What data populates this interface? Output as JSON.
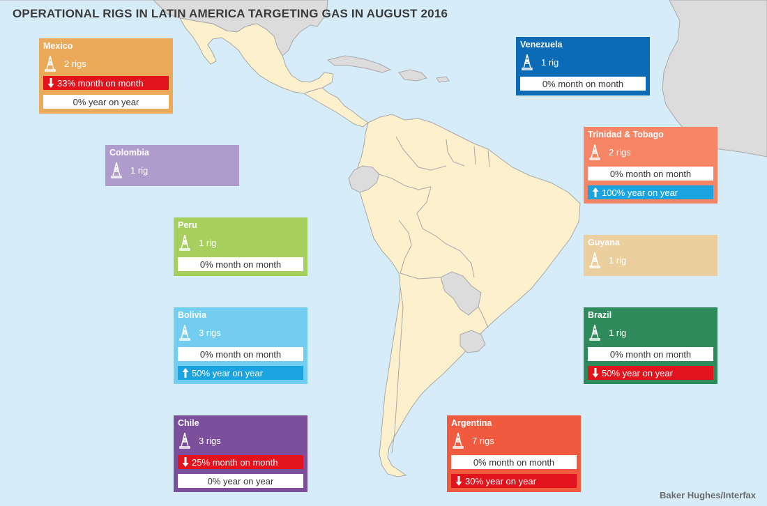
{
  "title": "OPERATIONAL RIGS IN LATIN AMERICA TARGETING GAS IN AUGUST 2016",
  "source": "Baker Hughes/Interfax",
  "colors": {
    "ocean": "#d6ecf8",
    "latin_america_land": "#fdf0cc",
    "other_land": "#dcdcdc",
    "border": "#a8a8a8",
    "decline": "#e3131d",
    "increase": "#1aa3e0",
    "neutral_box": "#ffffff"
  },
  "icons": {
    "rig": "oil-rig-icon",
    "down": "down-arrow-icon",
    "up": "up-arrow-icon"
  },
  "countries": [
    {
      "name": "Mexico",
      "rigs": "2 rigs",
      "color": "#eaaa5a",
      "month": {
        "text": "33% month on month",
        "trend": "down"
      },
      "year": {
        "text": "0% year on year",
        "trend": "neutral"
      }
    },
    {
      "name": "Venezuela",
      "rigs": "1 rig",
      "color": "#0b6bb7",
      "month": {
        "text": "0% month on month",
        "trend": "neutral"
      }
    },
    {
      "name": "Trinidad & Tobago",
      "rigs": "2 rigs",
      "color": "#f58565",
      "month": {
        "text": "0% month on month",
        "trend": "neutral"
      },
      "year": {
        "text": "100% year on year",
        "trend": "up"
      }
    },
    {
      "name": "Colombia",
      "rigs": "1 rig",
      "color": "#b09ccc"
    },
    {
      "name": "Peru",
      "rigs": "1 rig",
      "color": "#a6cf5e",
      "month": {
        "text": "0% month on month",
        "trend": "neutral"
      }
    },
    {
      "name": "Guyana",
      "rigs": "1 rig",
      "color": "#eccf9e"
    },
    {
      "name": "Bolivia",
      "rigs": "3 rigs",
      "color": "#72cdf0",
      "month": {
        "text": "0% month on month",
        "trend": "neutral"
      },
      "year": {
        "text": "50% year on year",
        "trend": "up"
      }
    },
    {
      "name": "Brazil",
      "rigs": "1 rig",
      "color": "#2f8a5c",
      "month": {
        "text": "0% month on month",
        "trend": "neutral"
      },
      "year": {
        "text": "50% year on year",
        "trend": "down"
      }
    },
    {
      "name": "Chile",
      "rigs": "3 rigs",
      "color": "#7b4f9c",
      "month": {
        "text": "25% month on month",
        "trend": "down"
      },
      "year": {
        "text": "0% year on year",
        "trend": "neutral"
      }
    },
    {
      "name": "Argentina",
      "rigs": "7 rigs",
      "color": "#f05b40",
      "month": {
        "text": "0% month on month",
        "trend": "neutral"
      },
      "year": {
        "text": "30% year on year",
        "trend": "down"
      }
    }
  ]
}
